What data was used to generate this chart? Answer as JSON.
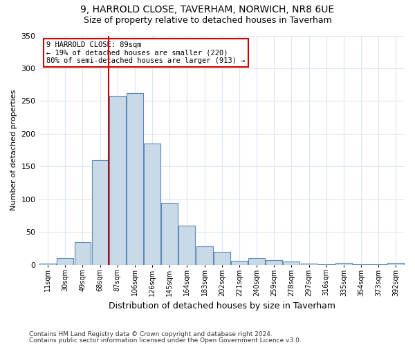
{
  "title1": "9, HARROLD CLOSE, TAVERHAM, NORWICH, NR8 6UE",
  "title2": "Size of property relative to detached houses in Taverham",
  "xlabel": "Distribution of detached houses by size in Taverham",
  "ylabel": "Number of detached properties",
  "categories": [
    "11sqm",
    "30sqm",
    "49sqm",
    "68sqm",
    "87sqm",
    "106sqm",
    "126sqm",
    "145sqm",
    "164sqm",
    "183sqm",
    "202sqm",
    "221sqm",
    "240sqm",
    "259sqm",
    "278sqm",
    "297sqm",
    "316sqm",
    "335sqm",
    "354sqm",
    "373sqm",
    "392sqm"
  ],
  "bar_values": [
    2,
    10,
    35,
    160,
    258,
    262,
    185,
    95,
    60,
    28,
    20,
    6,
    10,
    7,
    5,
    2,
    1,
    3,
    1,
    1,
    3
  ],
  "annotation_text": "9 HARROLD CLOSE: 89sqm\n← 19% of detached houses are smaller (220)\n80% of semi-detached houses are larger (913) →",
  "footer1": "Contains HM Land Registry data © Crown copyright and database right 2024.",
  "footer2": "Contains public sector information licensed under the Open Government Licence v3.0.",
  "bar_color": "#c9d9e8",
  "bar_edge_color": "#5a8ab5",
  "line_color": "#cc0000",
  "annotation_box_color": "#cc0000",
  "bg_color": "#ffffff",
  "grid_color": "#dce6f1",
  "ylim": [
    0,
    350
  ],
  "yticks": [
    0,
    50,
    100,
    150,
    200,
    250,
    300,
    350
  ]
}
